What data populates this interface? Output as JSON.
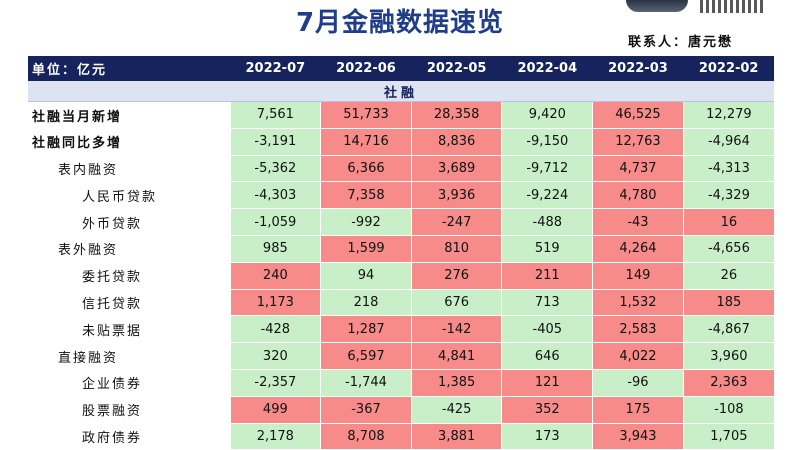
{
  "title": "7月金融数据速览",
  "contact": "联系人：唐元懋",
  "header": {
    "unit": "单位：亿元",
    "columns": [
      "2022-07",
      "2022-06",
      "2022-05",
      "2022-04",
      "2022-03",
      "2022-02"
    ]
  },
  "section": "社融",
  "colors": {
    "positive_fill": "#f68b89",
    "negative_fill": "#c8efc8",
    "header_bg": "#16235c"
  },
  "rows": [
    {
      "label": "社融当月新增",
      "level": 0,
      "values": [
        "7,561",
        "51,733",
        "28,358",
        "9,420",
        "46,525",
        "12,279"
      ],
      "fills": [
        "g",
        "r",
        "r",
        "g",
        "r",
        "g"
      ]
    },
    {
      "label": "社融同比多增",
      "level": 0,
      "values": [
        "-3,191",
        "14,716",
        "8,836",
        "-9,150",
        "12,763",
        "-4,964"
      ],
      "fills": [
        "g",
        "r",
        "r",
        "g",
        "r",
        "g"
      ]
    },
    {
      "label": "表内融资",
      "level": 1,
      "values": [
        "-5,362",
        "6,366",
        "3,689",
        "-9,712",
        "4,737",
        "-4,313"
      ],
      "fills": [
        "g",
        "r",
        "r",
        "g",
        "r",
        "g"
      ]
    },
    {
      "label": "人民币贷款",
      "level": 2,
      "values": [
        "-4,303",
        "7,358",
        "3,936",
        "-9,224",
        "4,780",
        "-4,329"
      ],
      "fills": [
        "g",
        "r",
        "r",
        "g",
        "r",
        "g"
      ]
    },
    {
      "label": "外币贷款",
      "level": 2,
      "values": [
        "-1,059",
        "-992",
        "-247",
        "-488",
        "-43",
        "16"
      ],
      "fills": [
        "g",
        "g",
        "r",
        "g",
        "r",
        "r"
      ]
    },
    {
      "label": "表外融资",
      "level": 1,
      "values": [
        "985",
        "1,599",
        "810",
        "519",
        "4,264",
        "-4,656"
      ],
      "fills": [
        "g",
        "r",
        "r",
        "g",
        "r",
        "g"
      ]
    },
    {
      "label": "委托贷款",
      "level": 2,
      "values": [
        "240",
        "94",
        "276",
        "211",
        "149",
        "26"
      ],
      "fills": [
        "r",
        "g",
        "r",
        "r",
        "r",
        "g"
      ]
    },
    {
      "label": "信托贷款",
      "level": 2,
      "values": [
        "1,173",
        "218",
        "676",
        "713",
        "1,532",
        "185"
      ],
      "fills": [
        "r",
        "g",
        "g",
        "g",
        "r",
        "r"
      ]
    },
    {
      "label": "未贴票据",
      "level": 2,
      "values": [
        "-428",
        "1,287",
        "-142",
        "-405",
        "2,583",
        "-4,867"
      ],
      "fills": [
        "g",
        "r",
        "r",
        "g",
        "r",
        "g"
      ]
    },
    {
      "label": "直接融资",
      "level": 1,
      "values": [
        "320",
        "6,597",
        "4,841",
        "646",
        "4,022",
        "3,960"
      ],
      "fills": [
        "g",
        "r",
        "r",
        "g",
        "r",
        "g"
      ]
    },
    {
      "label": "企业债券",
      "level": 2,
      "values": [
        "-2,357",
        "-1,744",
        "1,385",
        "121",
        "-96",
        "2,363"
      ],
      "fills": [
        "g",
        "g",
        "r",
        "r",
        "g",
        "r"
      ]
    },
    {
      "label": "股票融资",
      "level": 2,
      "values": [
        "499",
        "-367",
        "-425",
        "352",
        "175",
        "-108"
      ],
      "fills": [
        "r",
        "r",
        "g",
        "r",
        "r",
        "g"
      ]
    },
    {
      "label": "政府债券",
      "level": 2,
      "values": [
        "2,178",
        "8,708",
        "3,881",
        "173",
        "3,943",
        "1,705"
      ],
      "fills": [
        "g",
        "r",
        "r",
        "g",
        "r",
        "g"
      ]
    }
  ]
}
